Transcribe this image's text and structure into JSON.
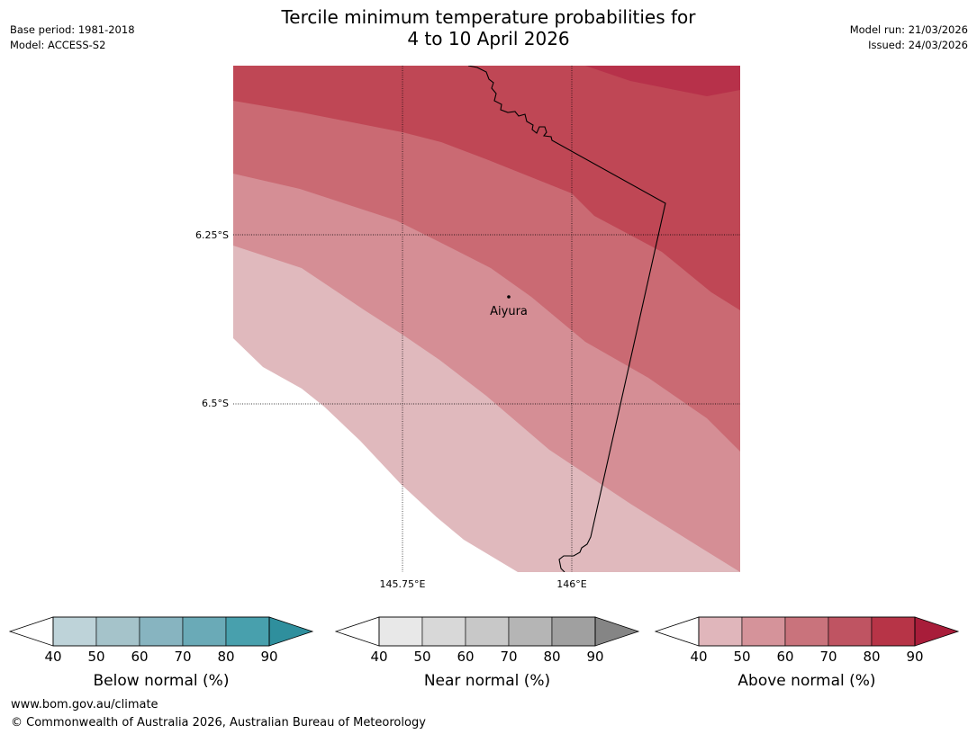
{
  "header": {
    "title_line1": "Tercile minimum temperature probabilities for",
    "title_line2": "4 to 10 April 2026",
    "base_period": "Base period: 1981-2018",
    "model": "Model: ACCESS-S2",
    "model_run": "Model run: 21/03/2026",
    "issued": "Issued: 24/03/2026"
  },
  "map": {
    "place_label": "Aiyura",
    "lat_labels": [
      "6.25°S",
      "6.5°S"
    ],
    "lon_labels": [
      "145.75°E",
      "146°E"
    ],
    "category_shown": "Above normal",
    "band_colors": {
      "above_40_50": "#e0b9bd",
      "above_50_60": "#d58e95",
      "above_60_70": "#ca6a73",
      "above_70_80": "#bf4755",
      "above_80_90": "#b7314a"
    }
  },
  "legends": [
    {
      "label": "Below normal (%)",
      "ticks": [
        "40",
        "50",
        "60",
        "70",
        "80",
        "90"
      ],
      "colors": [
        "#bed3d9",
        "#a5c3ca",
        "#87b4c0",
        "#6aaab7",
        "#48a0ad"
      ],
      "over_color": "#2f8f9d"
    },
    {
      "label": "Near normal (%)",
      "ticks": [
        "40",
        "50",
        "60",
        "70",
        "80",
        "90"
      ],
      "colors": [
        "#e8e8e8",
        "#d8d8d8",
        "#c8c8c8",
        "#b5b5b5",
        "#a0a0a0"
      ],
      "over_color": "#858585"
    },
    {
      "label": "Above normal (%)",
      "ticks": [
        "40",
        "50",
        "60",
        "70",
        "80",
        "90"
      ],
      "colors": [
        "#e0b6bb",
        "#d5939a",
        "#c9737c",
        "#bf5462",
        "#b73447"
      ],
      "over_color": "#a81d3a"
    }
  ],
  "footer": {
    "website": "www.bom.gov.au/climate",
    "copyright": "© Commonwealth of Australia 2026, Australian Bureau of Meteorology"
  }
}
